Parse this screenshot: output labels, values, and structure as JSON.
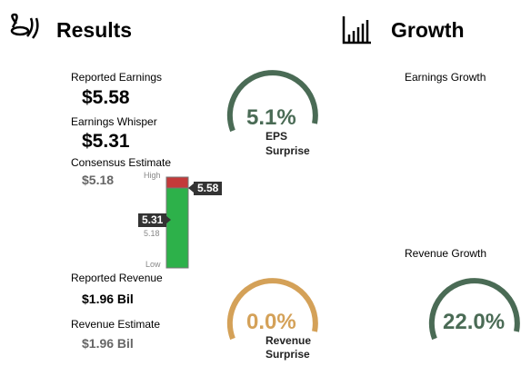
{
  "results": {
    "title": "Results",
    "reported_earnings": {
      "label": "Reported Earnings",
      "value": "$5.58"
    },
    "earnings_whisper": {
      "label": "Earnings Whisper",
      "value": "$5.31"
    },
    "consensus_estimate": {
      "label": "Consensus Estimate",
      "value": "$5.18"
    },
    "range": {
      "high": "High",
      "consensus": "5.18",
      "low": "Low",
      "reported": "5.58",
      "whisper": "5.31"
    },
    "eps_surprise": {
      "value": "5.1%",
      "label_line1": "EPS",
      "label_line2": "Surprise"
    },
    "reported_revenue": {
      "label": "Reported Revenue",
      "value": "$1.96 Bil"
    },
    "revenue_estimate": {
      "label": "Revenue Estimate",
      "value": "$1.96 Bil"
    },
    "revenue_surprise": {
      "value": "0.0%",
      "label_line1": "Revenue",
      "label_line2": "Surprise"
    }
  },
  "growth": {
    "title": "Growth",
    "earnings_growth": {
      "label": "Earnings Growth"
    },
    "revenue_growth": {
      "label": "Revenue Growth",
      "value": "22.0%"
    }
  }
}
